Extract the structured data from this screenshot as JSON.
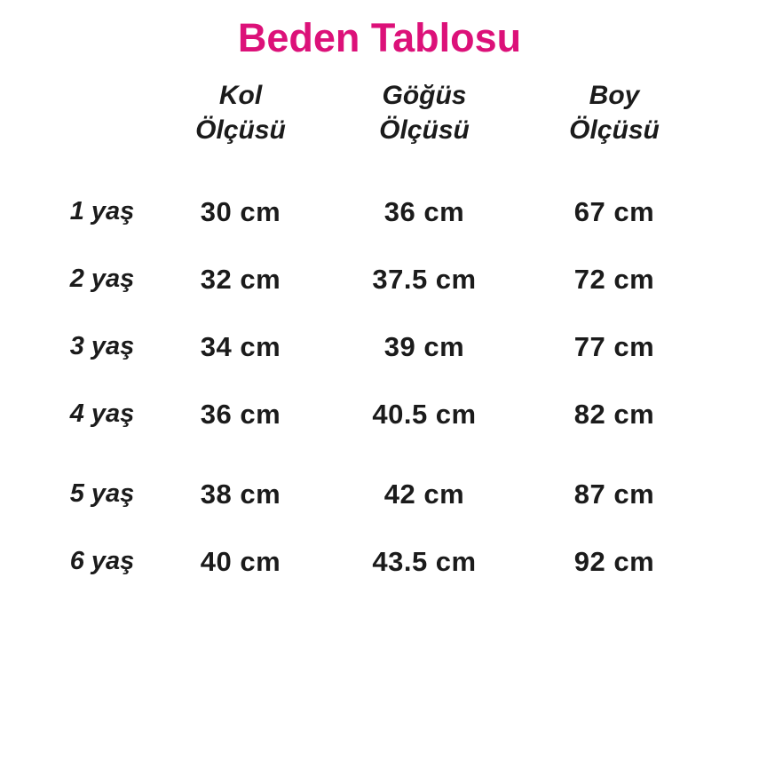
{
  "title": {
    "text": "Beden Tablosu",
    "color": "#DC1179"
  },
  "text_color": "#1b1b1b",
  "chart_data": {
    "type": "table",
    "title": "Beden Tablosu",
    "column_headers": [
      {
        "line1": "",
        "line2": ""
      },
      {
        "line1": "Kol",
        "line2": "Ölçüsü"
      },
      {
        "line1": "Göğüs",
        "line2": "Ölçüsü"
      },
      {
        "line1": "Boy",
        "line2": "Ölçüsü"
      }
    ],
    "rows": [
      {
        "age": "1 yaş",
        "kol": "30 cm",
        "gogus": "36 cm",
        "boy": "67 cm"
      },
      {
        "age": "2 yaş",
        "kol": "32 cm",
        "gogus": "37.5 cm",
        "boy": "72 cm"
      },
      {
        "age": "3 yaş",
        "kol": "34 cm",
        "gogus": "39 cm",
        "boy": "77 cm"
      },
      {
        "age": "4 yaş",
        "kol": "36 cm",
        "gogus": "40.5 cm",
        "boy": "82 cm"
      },
      {
        "age": "5 yaş",
        "kol": "38 cm",
        "gogus": "42 cm",
        "boy": "87 cm"
      },
      {
        "age": "6 yaş",
        "kol": "40 cm",
        "gogus": "43.5 cm",
        "boy": "92 cm"
      }
    ]
  }
}
